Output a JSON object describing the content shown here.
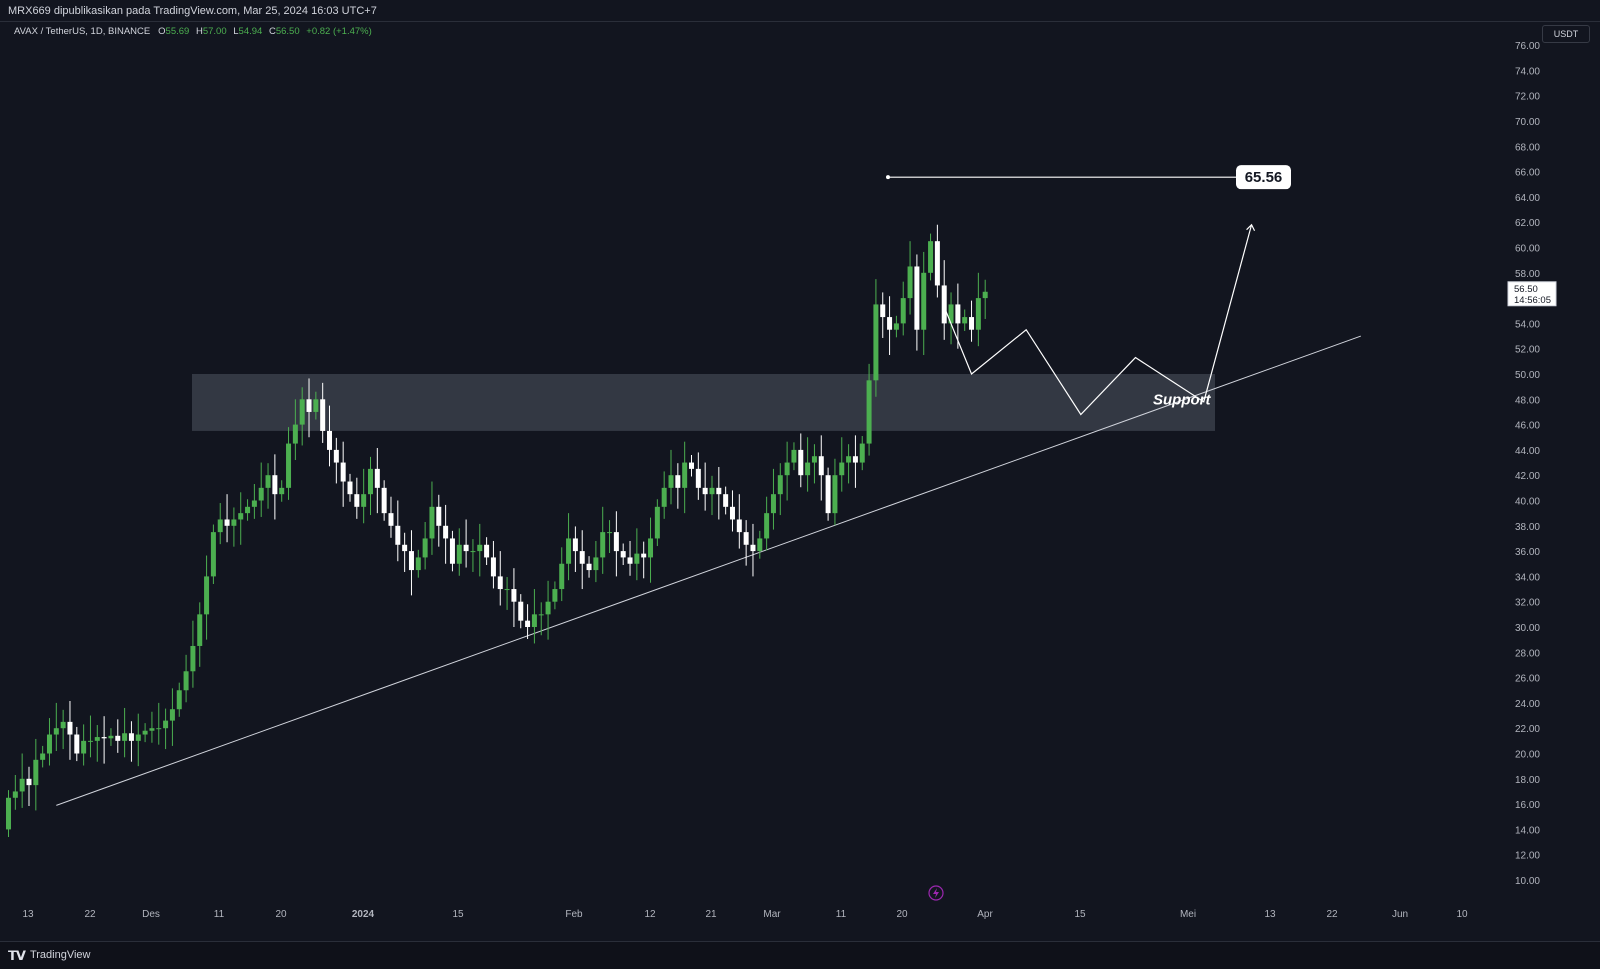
{
  "header": {
    "published": "MRX669 dipublikasikan pada TradingView.com, Mar 25, 2024 16:03 UTC+7"
  },
  "legend": {
    "symbol": "AVAX / TetherUS, 1D, BINANCE",
    "o_label": "O",
    "o": "55.69",
    "h_label": "H",
    "h": "57.00",
    "l_label": "L",
    "l": "54.94",
    "c_label": "C",
    "c": "56.50",
    "change": "+0.82 (+1.47%)"
  },
  "currency": "USDT",
  "price_tag": {
    "price": "56.50",
    "countdown": "14:56:05"
  },
  "target_label": "65.56",
  "support_label": "Support",
  "footer": {
    "brand": "TradingView"
  },
  "colors": {
    "up": "#4caf50",
    "down": "#ffffff",
    "background": "#12151f",
    "zone": "#3a3e4a"
  },
  "chart_data": {
    "type": "candlestick",
    "ylim": [
      9,
      76
    ],
    "y_ticks": [
      "10.00",
      "12.00",
      "14.00",
      "16.00",
      "18.00",
      "20.00",
      "22.00",
      "24.00",
      "26.00",
      "28.00",
      "30.00",
      "32.00",
      "34.00",
      "36.00",
      "38.00",
      "40.00",
      "42.00",
      "44.00",
      "46.00",
      "48.00",
      "50.00",
      "52.00",
      "54.00",
      "56.00",
      "58.00",
      "60.00",
      "62.00",
      "64.00",
      "66.00",
      "68.00",
      "70.00",
      "72.00",
      "74.00",
      "76.00"
    ],
    "x_ticks": [
      "13",
      "22",
      "Des",
      "11",
      "20",
      "2024",
      "15",
      "Feb",
      "12",
      "21",
      "Mar",
      "11",
      "20",
      "Apr",
      "15",
      "Mei",
      "13",
      "22",
      "Jun",
      "10"
    ],
    "x_start_date": "2023-11-11",
    "closes": [
      16.5,
      17,
      18,
      17.5,
      19.5,
      20,
      21.5,
      22,
      22.5,
      21.5,
      20,
      21,
      21,
      21.3,
      21.2,
      21.4,
      21,
      21.6,
      21,
      21.5,
      21.8,
      22,
      22,
      22.6,
      23.5,
      25,
      26.5,
      28.5,
      31,
      34,
      37.5,
      38.5,
      38,
      38.5,
      39,
      39.5,
      40,
      41,
      42,
      40.5,
      41,
      44.5,
      46,
      48,
      47,
      48,
      45.5,
      44,
      43,
      41.5,
      40.5,
      39.5,
      40.5,
      42.5,
      41,
      39,
      38,
      36.5,
      36,
      34.5,
      35.5,
      37,
      39.5,
      38,
      37,
      35,
      36.5,
      36,
      36,
      36.5,
      35.5,
      34,
      33,
      33,
      32,
      30.5,
      30,
      31,
      31,
      32,
      33,
      35,
      37,
      36,
      35,
      34.5,
      35.5,
      37.5,
      37.5,
      36,
      35.5,
      35,
      35.8,
      35.5,
      37,
      39.5,
      41,
      42,
      41,
      43,
      42.5,
      41,
      40.5,
      41,
      40.5,
      39.5,
      38.5,
      37.5,
      36.5,
      36,
      37,
      39,
      40.5,
      42,
      43,
      44,
      42,
      43,
      43.5,
      42,
      39,
      42,
      43,
      43.5,
      43,
      44.5,
      49.5,
      55.5,
      54.5,
      53.5,
      54,
      56,
      58.5,
      53.5,
      58,
      60.5,
      57,
      54,
      55.5,
      54,
      54.5,
      53.5,
      56,
      56.5
    ],
    "target": 65.56,
    "support_zone": [
      45.5,
      50
    ],
    "trendline": {
      "from_date": "2023-11-18",
      "from_price": 15.9,
      "to_date": "2024-05-27",
      "to_price": 53
    },
    "projection_path": [
      [
        "2024-03-27",
        55.3
      ],
      [
        "2024-03-31",
        50
      ],
      [
        "2024-04-08",
        53.5
      ],
      [
        "2024-04-16",
        46.8
      ],
      [
        "2024-04-24",
        51.3
      ],
      [
        "2024-05-04",
        47.8
      ],
      [
        "2024-05-11",
        61.8
      ]
    ]
  }
}
